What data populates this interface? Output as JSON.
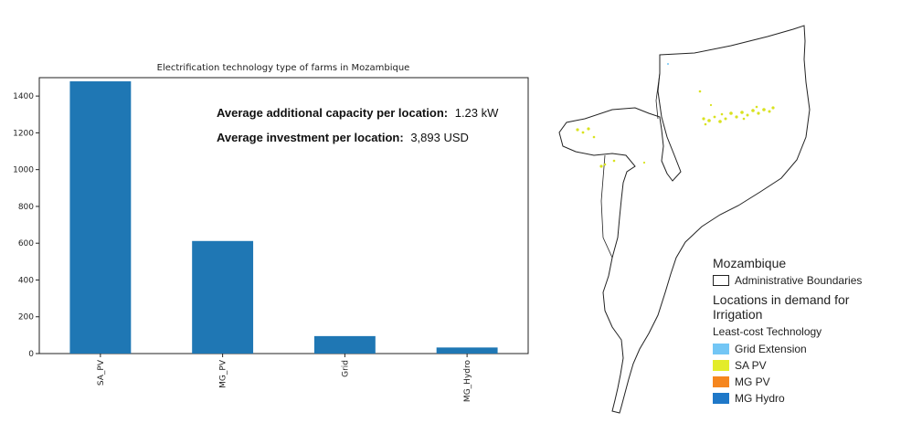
{
  "chart_data": {
    "type": "bar",
    "title": "Electrification technology type of farms in Mozambique",
    "categories": [
      "SA_PV",
      "MG_PV",
      "Grid",
      "MG_Hydro"
    ],
    "values": [
      1480,
      612,
      95,
      33
    ],
    "ylim": [
      0,
      1500
    ],
    "yticks": [
      "0",
      "200",
      "400",
      "600",
      "800",
      "1000",
      "1200",
      "1400"
    ],
    "bar_color": "#1f77b4",
    "xlabel": "",
    "ylabel": "",
    "grid": false
  },
  "annotations": {
    "capacity_label": "Average additional capacity per location:",
    "capacity_value": "1.23 kW",
    "investment_label": "Average investment per location:",
    "investment_value": "3,893 USD"
  },
  "map_legend": {
    "country": "Mozambique",
    "boundaries_label": "Administrative Boundaries",
    "demand_title": "Locations in demand for Irrigation",
    "tech_title": "Least-cost Technology",
    "items": [
      {
        "label": "Grid Extension",
        "color": "#73c6f5"
      },
      {
        "label": "SA PV",
        "color": "#e3ec2a"
      },
      {
        "label": "MG PV",
        "color": "#f5861f"
      },
      {
        "label": "MG Hydro",
        "color": "#1f78c8"
      }
    ]
  }
}
